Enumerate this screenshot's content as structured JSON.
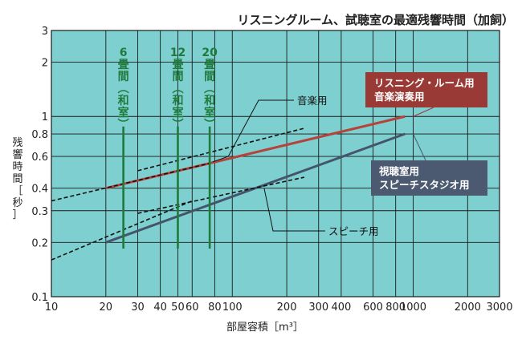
{
  "chart_data": {
    "type": "line",
    "title": "リスニングルーム、試聴室の最適残響時間（加飼）",
    "xlabel": "部屋容積［m³］",
    "ylabel_lines": [
      "残",
      "響",
      "時",
      "間",
      "［",
      "秒",
      "］"
    ],
    "x_scale": "log",
    "y_scale": "log",
    "xlim": [
      10,
      3000
    ],
    "ylim": [
      0.1,
      3
    ],
    "grid": true,
    "x_ticks": [
      {
        "value": 10,
        "label": "10"
      },
      {
        "value": 20,
        "label": "20"
      },
      {
        "value": 30,
        "label": "30"
      },
      {
        "value": 40,
        "label": "40"
      },
      {
        "value": 50,
        "label": "50"
      },
      {
        "value": 60,
        "label": "60"
      },
      {
        "value": 80,
        "label": "80"
      },
      {
        "value": 100,
        "label": "100"
      },
      {
        "value": 200,
        "label": "200"
      },
      {
        "value": 300,
        "label": "300"
      },
      {
        "value": 400,
        "label": "400"
      },
      {
        "value": 600,
        "label": "600"
      },
      {
        "value": 800,
        "label": "800"
      },
      {
        "value": 1000,
        "label": "1000"
      },
      {
        "value": 2000,
        "label": "2000"
      },
      {
        "value": 3000,
        "label": "3000"
      }
    ],
    "y_ticks": [
      {
        "value": 0.1,
        "label": "0.1"
      },
      {
        "value": 0.2,
        "label": "0.2"
      },
      {
        "value": 0.3,
        "label": "0.3"
      },
      {
        "value": 0.4,
        "label": "0.4"
      },
      {
        "value": 0.6,
        "label": "0.6"
      },
      {
        "value": 0.8,
        "label": "0.8"
      },
      {
        "value": 1,
        "label": "1"
      },
      {
        "value": 2,
        "label": "2"
      },
      {
        "value": 3,
        "label": "3"
      }
    ],
    "series": [
      {
        "name": "リスニング・ルーム用 音楽演奏用",
        "color": "#b5433a",
        "style": "solid",
        "points": [
          [
            20,
            0.4
          ],
          [
            900,
            1.0
          ]
        ]
      },
      {
        "name": "視聴室用 スピーチスタジオ用",
        "color": "#44546b",
        "style": "solid",
        "points": [
          [
            20,
            0.2
          ],
          [
            900,
            0.8
          ]
        ]
      },
      {
        "name": "音楽用",
        "color": "#111111",
        "style": "dashed",
        "segments": [
          [
            [
              10,
              0.34
            ],
            [
              75,
              0.55
            ]
          ],
          [
            [
              30,
              0.5
            ],
            [
              250,
              0.86
            ]
          ]
        ]
      },
      {
        "name": "スピーチ用",
        "color": "#111111",
        "style": "dashed",
        "segments": [
          [
            [
              10,
              0.16
            ],
            [
              60,
              0.34
            ]
          ],
          [
            [
              30,
              0.29
            ],
            [
              250,
              0.46
            ]
          ]
        ]
      }
    ],
    "room_markers": [
      {
        "lines": [
          "6",
          "畳",
          "間",
          "︵",
          "和",
          "室",
          "︶"
        ],
        "x": 25,
        "y_range": [
          0.185,
          0.88
        ]
      },
      {
        "lines": [
          "12",
          "畳",
          "間",
          "︵",
          "和",
          "室",
          "︶"
        ],
        "x": 50,
        "y_range": [
          0.185,
          0.88
        ]
      },
      {
        "lines": [
          "20",
          "畳",
          "間",
          "︵",
          "和",
          "室",
          "︶"
        ],
        "x": 75,
        "y_range": [
          0.185,
          0.88
        ]
      }
    ],
    "annotations": {
      "music": "音楽用",
      "speech": "スピーチ用",
      "red_box": [
        "リスニング・ルーム用",
        "音楽演奏用"
      ],
      "blue_box": [
        "視聴室用",
        "スピーチスタジオ用"
      ]
    },
    "colors": {
      "plot_bg": "#7ecfcf",
      "grid": "#1a1a1a",
      "red_line": "#b5433a",
      "blue_line": "#44546b",
      "room_marker": "#1f7a3c",
      "red_box": "#9a3a36",
      "blue_box": "#4b5a70"
    }
  }
}
